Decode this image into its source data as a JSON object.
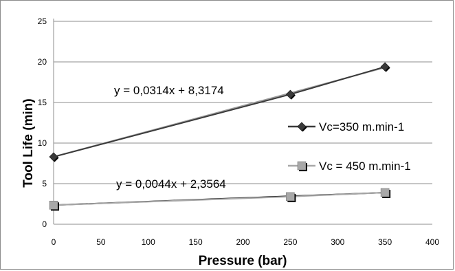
{
  "chart_data": {
    "type": "scatter",
    "xlabel": "Pressure (bar)",
    "ylabel": "Tool Life (min)",
    "xlim": [
      0,
      400
    ],
    "ylim": [
      0,
      25
    ],
    "x_ticks": [
      0,
      50,
      100,
      150,
      200,
      250,
      300,
      350,
      400
    ],
    "y_ticks": [
      0,
      5,
      10,
      15,
      20,
      25
    ],
    "grid": "horizontal",
    "legend_position": "right",
    "series": [
      {
        "name": "Vc=350 m.min-1",
        "marker": "diamond",
        "color": "#3a3a3a",
        "x": [
          0,
          250,
          350
        ],
        "y": [
          8.3,
          16.0,
          19.4
        ],
        "trendline": {
          "slope": 0.0314,
          "intercept": 8.3174,
          "color": "#9a9a9a"
        },
        "equation": "y = 0,0314x + 8,3174"
      },
      {
        "name": "Vc = 450 m.min-1",
        "marker": "square",
        "color": "#a8a8a8",
        "x": [
          0,
          250,
          350
        ],
        "y": [
          2.35,
          3.4,
          3.9
        ],
        "trendline": {
          "slope": 0.0044,
          "intercept": 2.3564,
          "color": "#000000"
        },
        "equation": "y = 0,0044x + 2,3564"
      }
    ]
  }
}
